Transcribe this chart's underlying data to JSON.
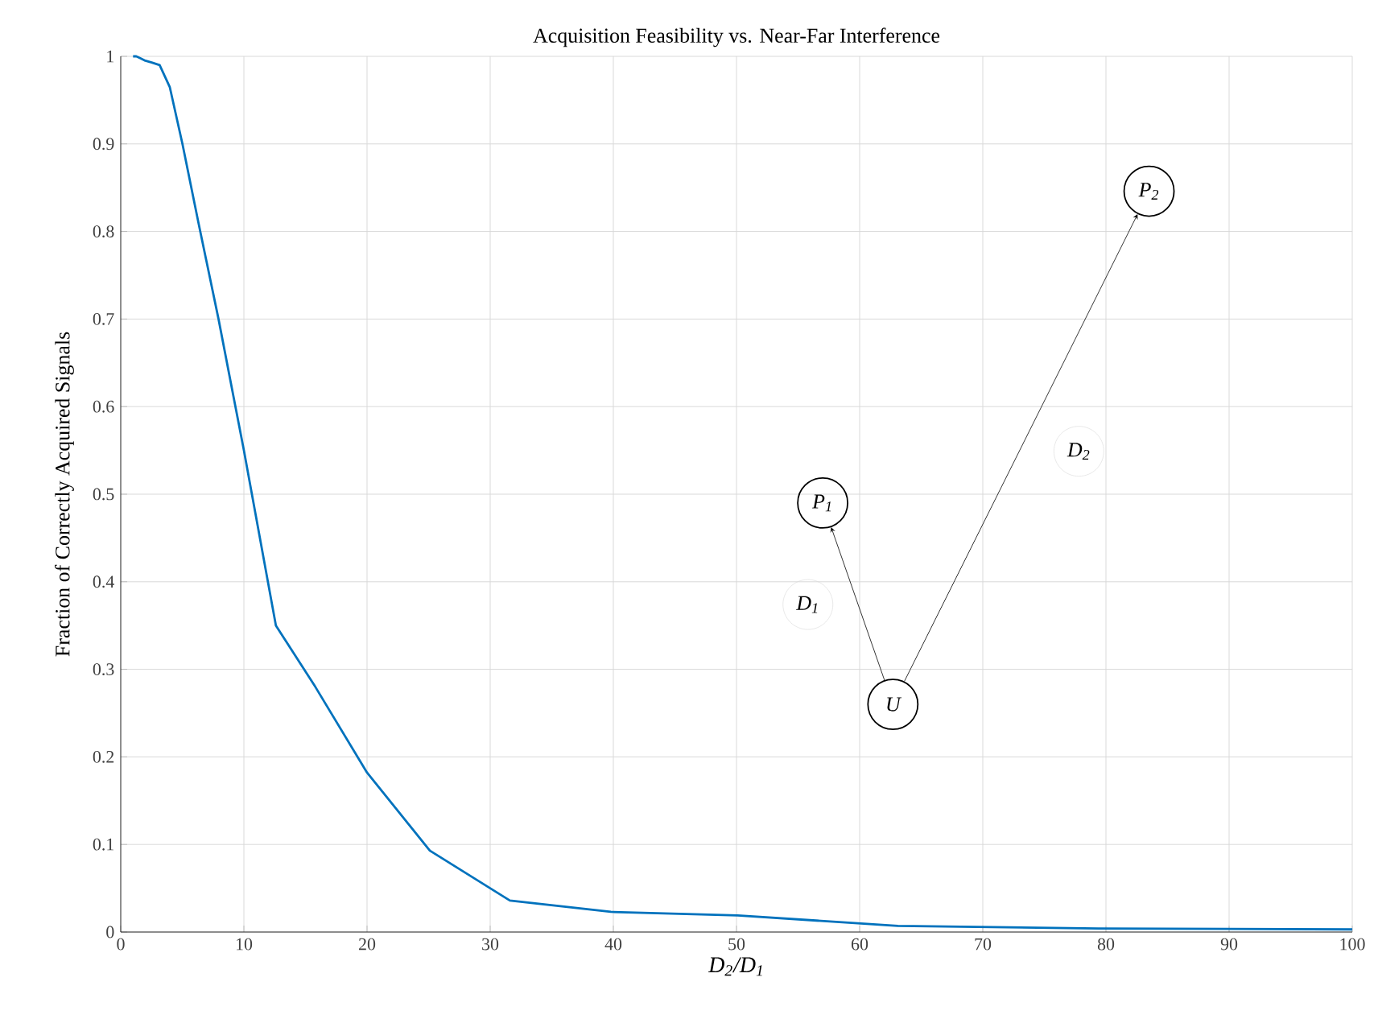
{
  "chart_data": {
    "type": "line",
    "title": "Acquisition Feasibility vs. Near-Far Interference",
    "xlabel": "D$_{2}$/D$_{1}$",
    "ylabel": "Fraction of Correctly Acquired Signals",
    "x": [
      1,
      1.26,
      1.58,
      2,
      2.51,
      3.16,
      3.98,
      5.01,
      6.31,
      7.94,
      10,
      12.6,
      15.8,
      20,
      25.1,
      31.6,
      39.8,
      50.1,
      63.1,
      79.4,
      100
    ],
    "series": [
      {
        "color": "#0072bd",
        "values": [
          1.0,
          1.0,
          0.998,
          0.995,
          0.993,
          0.99,
          0.965,
          0.9,
          0.81,
          0.7,
          0.55,
          0.35,
          0.28,
          0.182,
          0.093,
          0.036,
          0.023,
          0.019,
          0.007,
          0.004,
          0.003
        ]
      }
    ],
    "xlim": [
      0,
      100
    ],
    "ylim": [
      0,
      1
    ],
    "xticks": [
      0,
      10,
      20,
      30,
      40,
      50,
      60,
      70,
      80,
      90,
      100
    ],
    "yticks": [
      0,
      0.1,
      0.2,
      0.3,
      0.4,
      0.5,
      0.6,
      0.7,
      0.8,
      0.9,
      1
    ],
    "grid": true,
    "marker": "none",
    "line_style": "solid",
    "annotations": [
      "P$_{1}$",
      "P$_{2}$",
      "U",
      "D$_{1}$",
      "D$_{2}$"
    ]
  }
}
